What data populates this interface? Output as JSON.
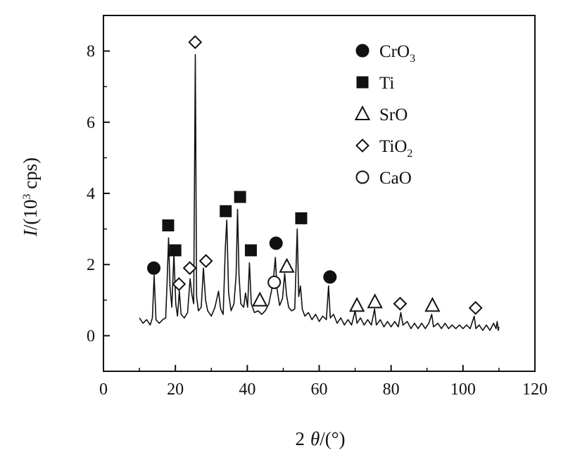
{
  "chart_data": {
    "type": "line",
    "xlabel": {
      "prefix": "2",
      "symbol": "θ",
      "unit": "/(°)"
    },
    "ylabel": {
      "symbol": "I",
      "unit": "/(10",
      "exp": "3",
      "unit2": " cps)"
    },
    "xlim": [
      0,
      120
    ],
    "ylim": [
      -1,
      9
    ],
    "xticks": [
      0,
      20,
      40,
      60,
      80,
      100,
      120
    ],
    "yticks": [
      0,
      2,
      4,
      6,
      8
    ],
    "grid": false,
    "legend_position": "top-right",
    "legend": [
      {
        "key": "CrO3",
        "label": "CrO",
        "sub": "3",
        "marker": "circle-filled"
      },
      {
        "key": "Ti",
        "label": "Ti",
        "sub": "",
        "marker": "square-filled"
      },
      {
        "key": "SrO",
        "label": "SrO",
        "sub": "",
        "marker": "triangle-open"
      },
      {
        "key": "TiO2",
        "label": "TiO",
        "sub": "2",
        "marker": "diamond-open"
      },
      {
        "key": "CaO",
        "label": "CaO",
        "sub": "",
        "marker": "circle-open"
      }
    ],
    "series": [
      {
        "style": "line",
        "points": [
          [
            10,
            0.5
          ],
          [
            11,
            0.35
          ],
          [
            12,
            0.45
          ],
          [
            13,
            0.3
          ],
          [
            13.6,
            0.5
          ],
          [
            14.1,
            1.7
          ],
          [
            14.6,
            0.45
          ],
          [
            15.5,
            0.35
          ],
          [
            16.5,
            0.45
          ],
          [
            17.3,
            0.5
          ],
          [
            17.7,
            1.5
          ],
          [
            18.1,
            2.75
          ],
          [
            18.5,
            1.4
          ],
          [
            19,
            0.8
          ],
          [
            19.6,
            2.3
          ],
          [
            20.1,
            0.9
          ],
          [
            20.6,
            0.55
          ],
          [
            21.1,
            1.25
          ],
          [
            21.6,
            0.6
          ],
          [
            22.5,
            0.5
          ],
          [
            23.4,
            0.65
          ],
          [
            24.1,
            1.6
          ],
          [
            24.6,
            1.15
          ],
          [
            25.1,
            0.9
          ],
          [
            25.55,
            7.9
          ],
          [
            25.9,
            1.1
          ],
          [
            26.4,
            0.7
          ],
          [
            27.2,
            0.8
          ],
          [
            27.8,
            1.9
          ],
          [
            28.4,
            1.0
          ],
          [
            29,
            0.7
          ],
          [
            30,
            0.55
          ],
          [
            31,
            0.8
          ],
          [
            32,
            1.25
          ],
          [
            32.6,
            0.75
          ],
          [
            33.3,
            0.6
          ],
          [
            33.9,
            2.5
          ],
          [
            34.3,
            3.25
          ],
          [
            34.8,
            1.2
          ],
          [
            35.5,
            0.7
          ],
          [
            36.3,
            0.9
          ],
          [
            36.9,
            1.7
          ],
          [
            37.3,
            3.55
          ],
          [
            37.7,
            1.7
          ],
          [
            38.2,
            0.9
          ],
          [
            39,
            0.8
          ],
          [
            39.5,
            1.2
          ],
          [
            40.1,
            0.8
          ],
          [
            40.6,
            2.05
          ],
          [
            41.1,
            0.9
          ],
          [
            42,
            0.65
          ],
          [
            43,
            0.7
          ],
          [
            44,
            0.6
          ],
          [
            45,
            0.7
          ],
          [
            46,
            0.9
          ],
          [
            46.7,
            1.25
          ],
          [
            47.3,
            1.6
          ],
          [
            47.8,
            2.2
          ],
          [
            48.3,
            1.3
          ],
          [
            49,
            0.85
          ],
          [
            49.8,
            1.05
          ],
          [
            50.4,
            1.75
          ],
          [
            50.9,
            1.15
          ],
          [
            51.5,
            0.8
          ],
          [
            52.3,
            0.7
          ],
          [
            53.2,
            0.75
          ],
          [
            53.9,
            3.0
          ],
          [
            54.3,
            1.1
          ],
          [
            54.8,
            1.4
          ],
          [
            55.3,
            0.75
          ],
          [
            56,
            0.55
          ],
          [
            57,
            0.65
          ],
          [
            58,
            0.45
          ],
          [
            59,
            0.6
          ],
          [
            60,
            0.4
          ],
          [
            61,
            0.55
          ],
          [
            62,
            0.45
          ],
          [
            62.6,
            1.4
          ],
          [
            63.1,
            0.5
          ],
          [
            64,
            0.6
          ],
          [
            65,
            0.35
          ],
          [
            66,
            0.5
          ],
          [
            67,
            0.3
          ],
          [
            68,
            0.45
          ],
          [
            69,
            0.3
          ],
          [
            70,
            0.7
          ],
          [
            70.5,
            0.35
          ],
          [
            71.5,
            0.5
          ],
          [
            72.5,
            0.3
          ],
          [
            73.5,
            0.45
          ],
          [
            74.5,
            0.3
          ],
          [
            75.4,
            0.75
          ],
          [
            75.9,
            0.3
          ],
          [
            77,
            0.45
          ],
          [
            78,
            0.25
          ],
          [
            79,
            0.4
          ],
          [
            80,
            0.25
          ],
          [
            81,
            0.4
          ],
          [
            82,
            0.25
          ],
          [
            82.7,
            0.65
          ],
          [
            83.3,
            0.3
          ],
          [
            84.5,
            0.4
          ],
          [
            85.5,
            0.2
          ],
          [
            86.5,
            0.35
          ],
          [
            87.5,
            0.2
          ],
          [
            88.5,
            0.35
          ],
          [
            89.5,
            0.2
          ],
          [
            90.5,
            0.35
          ],
          [
            91.3,
            0.6
          ],
          [
            91.8,
            0.25
          ],
          [
            93,
            0.35
          ],
          [
            94,
            0.2
          ],
          [
            95,
            0.35
          ],
          [
            96,
            0.2
          ],
          [
            97,
            0.3
          ],
          [
            98,
            0.2
          ],
          [
            99,
            0.3
          ],
          [
            100,
            0.2
          ],
          [
            101,
            0.3
          ],
          [
            102,
            0.2
          ],
          [
            103.1,
            0.55
          ],
          [
            103.6,
            0.2
          ],
          [
            104.5,
            0.3
          ],
          [
            105.5,
            0.15
          ],
          [
            106.5,
            0.3
          ],
          [
            107.5,
            0.15
          ],
          [
            108.5,
            0.35
          ],
          [
            109.2,
            0.2
          ],
          [
            109.5,
            0.4
          ],
          [
            109.8,
            0.15
          ],
          [
            110,
            0.25
          ]
        ]
      }
    ],
    "peak_markers": [
      {
        "phase": "CrO3",
        "x": 14,
        "y": 1.9
      },
      {
        "phase": "Ti",
        "x": 18,
        "y": 3.1
      },
      {
        "phase": "Ti",
        "x": 20,
        "y": 2.4
      },
      {
        "phase": "TiO2",
        "x": 21,
        "y": 1.45
      },
      {
        "phase": "TiO2",
        "x": 24,
        "y": 1.9
      },
      {
        "phase": "TiO2",
        "x": 25.5,
        "y": 8.25
      },
      {
        "phase": "TiO2",
        "x": 28.5,
        "y": 2.1
      },
      {
        "phase": "Ti",
        "x": 34,
        "y": 3.5
      },
      {
        "phase": "Ti",
        "x": 38,
        "y": 3.9
      },
      {
        "phase": "Ti",
        "x": 41,
        "y": 2.4
      },
      {
        "phase": "SrO",
        "x": 43.5,
        "y": 1.0
      },
      {
        "phase": "CaO",
        "x": 47.5,
        "y": 1.5
      },
      {
        "phase": "CrO3",
        "x": 48,
        "y": 2.6
      },
      {
        "phase": "SrO",
        "x": 51,
        "y": 1.95
      },
      {
        "phase": "Ti",
        "x": 55,
        "y": 3.3
      },
      {
        "phase": "CrO3",
        "x": 63,
        "y": 1.65
      },
      {
        "phase": "SrO",
        "x": 70.5,
        "y": 0.85
      },
      {
        "phase": "SrO",
        "x": 75.5,
        "y": 0.95
      },
      {
        "phase": "TiO2",
        "x": 82.5,
        "y": 0.9
      },
      {
        "phase": "SrO",
        "x": 91.5,
        "y": 0.85
      },
      {
        "phase": "TiO2",
        "x": 103.5,
        "y": 0.78
      }
    ]
  }
}
